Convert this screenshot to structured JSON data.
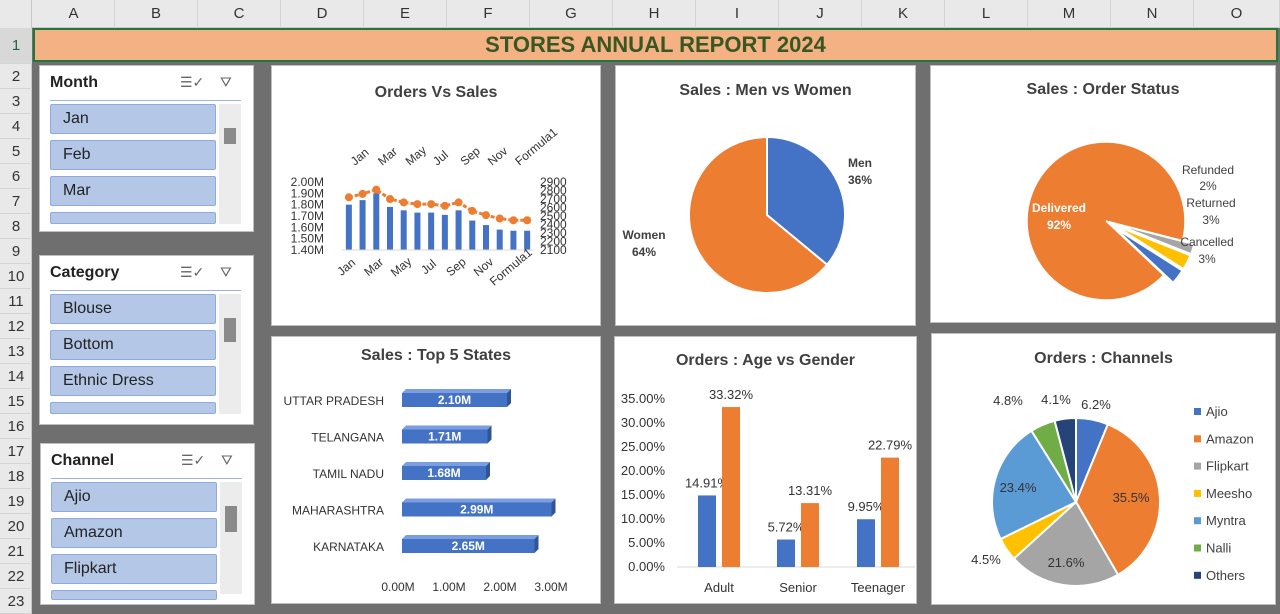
{
  "columns": [
    "A",
    "B",
    "C",
    "D",
    "E",
    "F",
    "G",
    "H",
    "I",
    "J",
    "K",
    "L",
    "M",
    "N",
    "O"
  ],
  "rows": [
    "1",
    "2",
    "3",
    "4",
    "5",
    "6",
    "7",
    "8",
    "9",
    "10",
    "11",
    "12",
    "13",
    "14",
    "15",
    "16",
    "17",
    "18",
    "19",
    "20",
    "21",
    "22",
    "23"
  ],
  "banner": {
    "title": "STORES ANNUAL REPORT 2024"
  },
  "slicers": [
    {
      "title": "Month",
      "items": [
        "Jan",
        "Feb",
        "Mar"
      ]
    },
    {
      "title": "Category",
      "items": [
        "Blouse",
        "Bottom",
        "Ethnic Dress"
      ]
    },
    {
      "title": "Channel",
      "items": [
        "Ajio",
        "Amazon",
        "Flipkart"
      ]
    }
  ],
  "icons": {
    "multiselect": "multi-select-icon",
    "clear_filter": "clear-filter-icon"
  },
  "colors": {
    "blue": "#4472c4",
    "orange": "#ed7d31",
    "gray": "#a5a5a5",
    "yellow": "#ffc000",
    "lightblue": "#5b9bd5",
    "green": "#70ad47",
    "navy": "#264478"
  },
  "chart_data": [
    {
      "type": "bar",
      "title": "Orders Vs Sales",
      "categories": [
        "Jan",
        "Mar",
        "May",
        "Jul",
        "Sep",
        "Nov",
        "Formula1"
      ],
      "top_categories": [
        "Jan",
        "Mar",
        "May",
        "Jul",
        "Sep",
        "Nov",
        "Formula1"
      ],
      "left_ticks": [
        "2.00M",
        "1.90M",
        "1.80M",
        "1.70M",
        "1.60M",
        "1.50M",
        "1.40M"
      ],
      "right_ticks": [
        "2900",
        "2800",
        "2700",
        "2600",
        "2500",
        "2400",
        "2300",
        "2200",
        "2100"
      ],
      "ylim": [
        1400000,
        2000000
      ],
      "y2lim": [
        2100,
        2900
      ],
      "bars": [
        1.8,
        1.84,
        1.9,
        1.78,
        1.75,
        1.73,
        1.73,
        1.71,
        1.75,
        1.66,
        1.62,
        1.58,
        1.57,
        1.57
      ],
      "line": [
        2720,
        2760,
        2810,
        2700,
        2660,
        2640,
        2640,
        2620,
        2660,
        2560,
        2510,
        2470,
        2450,
        2450
      ]
    },
    {
      "type": "pie",
      "title": "Sales : Men vs Women",
      "slices": [
        {
          "name": "Men",
          "value": 36,
          "label": "36%"
        },
        {
          "name": "Women",
          "value": 64,
          "label": "64%"
        }
      ]
    },
    {
      "type": "pie",
      "title": "Sales : Order Status",
      "slices": [
        {
          "name": "Delivered",
          "value": 92,
          "label": "92%"
        },
        {
          "name": "Refunded",
          "value": 2,
          "label": "2%"
        },
        {
          "name": "Returned",
          "value": 3,
          "label": "3%"
        },
        {
          "name": "Cancelled",
          "value": 3,
          "label": "3%"
        }
      ]
    },
    {
      "type": "bar",
      "title": "Sales : Top 5 States",
      "categories": [
        "UTTAR PRADESH",
        "TELANGANA",
        "TAMIL NADU",
        "MAHARASHTRA",
        "KARNATAKA"
      ],
      "values": [
        2.1,
        1.71,
        1.68,
        2.99,
        2.65
      ],
      "labels": [
        "2.10M",
        "1.71M",
        "1.68M",
        "2.99M",
        "2.65M"
      ],
      "xticks": [
        "0.00M",
        "1.00M",
        "2.00M",
        "3.00M"
      ],
      "xlim": [
        0,
        3
      ]
    },
    {
      "type": "bar",
      "title": "Orders : Age vs Gender",
      "categories": [
        "Adult",
        "Senior",
        "Teenager"
      ],
      "series": [
        {
          "values": [
            14.91,
            5.72,
            9.95
          ],
          "labels": [
            "14.91%",
            "5.72%",
            "9.95%"
          ]
        },
        {
          "values": [
            33.32,
            13.31,
            22.79
          ],
          "labels": [
            "33.32%",
            "13.31%",
            "22.79%"
          ]
        }
      ],
      "yticks": [
        "35.00%",
        "30.00%",
        "25.00%",
        "20.00%",
        "15.00%",
        "10.00%",
        "5.00%",
        "0.00%"
      ],
      "ylim": [
        0,
        35
      ]
    },
    {
      "type": "pie",
      "title": "Orders : Channels",
      "legend": "right",
      "slices": [
        {
          "name": "Ajio",
          "value": 6.2,
          "label": "6.2%"
        },
        {
          "name": "Amazon",
          "value": 35.5,
          "label": "35.5%"
        },
        {
          "name": "Flipkart",
          "value": 21.6,
          "label": "21.6%"
        },
        {
          "name": "Meesho",
          "value": 4.5,
          "label": "4.5%"
        },
        {
          "name": "Myntra",
          "value": 23.4,
          "label": "23.4%"
        },
        {
          "name": "Nalli",
          "value": 4.8,
          "label": "4.8%"
        },
        {
          "name": "Others",
          "value": 4.1,
          "label": "4.1%"
        }
      ]
    }
  ]
}
